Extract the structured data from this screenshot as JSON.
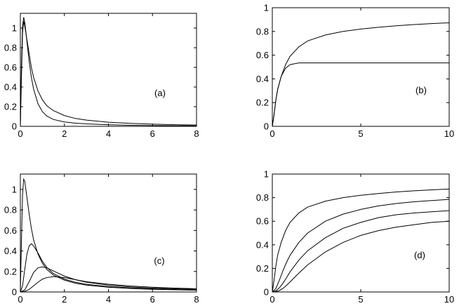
{
  "chart_data": [
    {
      "id": "a",
      "type": "line",
      "panel_label": "(a)",
      "xlim": [
        0,
        8
      ],
      "ylim": [
        0,
        1.15
      ],
      "xticks": [
        0,
        2,
        4,
        6,
        8
      ],
      "xtick_labels": [
        "0",
        "2",
        "4",
        "6",
        "8"
      ],
      "yticks": [
        0,
        0.2,
        0.4,
        0.6,
        0.8,
        1
      ],
      "ytick_labels": [
        "0",
        "0.2",
        "0.4",
        "0.6",
        "0.8",
        "1"
      ],
      "series": [
        {
          "x": [
            0,
            0.05,
            0.1,
            0.15,
            0.2,
            0.25,
            0.3,
            0.4,
            0.5,
            0.6,
            0.8,
            1.0,
            1.2,
            1.5,
            2.0,
            2.5,
            3,
            4,
            5,
            6,
            7,
            8
          ],
          "y": [
            0,
            0.62,
            1.02,
            1.11,
            1.06,
            0.96,
            0.86,
            0.66,
            0.5,
            0.38,
            0.23,
            0.15,
            0.105,
            0.07,
            0.045,
            0.032,
            0.025,
            0.016,
            0.011,
            0.008,
            0.006,
            0.005
          ]
        },
        {
          "x": [
            0,
            0.05,
            0.1,
            0.15,
            0.2,
            0.25,
            0.3,
            0.4,
            0.5,
            0.6,
            0.8,
            1.0,
            1.2,
            1.5,
            2.0,
            2.5,
            3,
            4,
            5,
            6,
            7,
            8
          ],
          "y": [
            0,
            0.5,
            0.95,
            1.07,
            1.02,
            0.95,
            0.88,
            0.74,
            0.6,
            0.5,
            0.36,
            0.27,
            0.21,
            0.16,
            0.11,
            0.08,
            0.063,
            0.042,
            0.03,
            0.022,
            0.017,
            0.013
          ]
        }
      ]
    },
    {
      "id": "b",
      "type": "line",
      "panel_label": "(b)",
      "xlim": [
        0,
        10
      ],
      "ylim": [
        0,
        1
      ],
      "xticks": [
        0,
        5,
        10
      ],
      "xtick_labels": [
        "0",
        "5",
        "10"
      ],
      "yticks": [
        0,
        0.2,
        0.4,
        0.6,
        0.8,
        1
      ],
      "ytick_labels": [
        "0",
        "0.2",
        "0.4",
        "0.6",
        "0.8",
        "1"
      ],
      "series": [
        {
          "x": [
            0,
            0.1,
            0.2,
            0.3,
            0.5,
            0.75,
            1,
            1.5,
            2,
            3,
            4,
            5,
            6,
            7,
            8,
            9,
            10
          ],
          "y": [
            0,
            0.1,
            0.22,
            0.31,
            0.42,
            0.49,
            0.52,
            0.535,
            0.535,
            0.535,
            0.535,
            0.535,
            0.535,
            0.535,
            0.535,
            0.535,
            0.535
          ]
        },
        {
          "x": [
            0,
            0.1,
            0.2,
            0.3,
            0.5,
            0.75,
            1,
            1.5,
            2,
            3,
            4,
            5,
            6,
            7,
            8,
            9,
            10
          ],
          "y": [
            0,
            0.1,
            0.22,
            0.31,
            0.42,
            0.52,
            0.59,
            0.67,
            0.72,
            0.77,
            0.8,
            0.82,
            0.835,
            0.848,
            0.858,
            0.866,
            0.873
          ]
        }
      ]
    },
    {
      "id": "c",
      "type": "line",
      "panel_label": "(c)",
      "xlim": [
        0,
        8
      ],
      "ylim": [
        0,
        1.15
      ],
      "xticks": [
        0,
        2,
        4,
        6,
        8
      ],
      "xtick_labels": [
        "0",
        "2",
        "4",
        "6",
        "8"
      ],
      "yticks": [
        0,
        0.2,
        0.4,
        0.6,
        0.8,
        1
      ],
      "ytick_labels": [
        "0",
        "0.2",
        "0.4",
        "0.6",
        "0.8",
        "1"
      ],
      "series": [
        {
          "x": [
            0,
            0.05,
            0.1,
            0.15,
            0.2,
            0.25,
            0.3,
            0.4,
            0.5,
            0.6,
            0.8,
            1.0,
            1.2,
            1.5,
            2.0,
            2.5,
            3,
            4,
            5,
            6,
            7,
            8
          ],
          "y": [
            0,
            0.5,
            0.95,
            1.1,
            1.08,
            1.0,
            0.92,
            0.76,
            0.62,
            0.51,
            0.37,
            0.28,
            0.22,
            0.165,
            0.115,
            0.085,
            0.067,
            0.046,
            0.034,
            0.026,
            0.021,
            0.017
          ]
        },
        {
          "x": [
            0,
            0.1,
            0.2,
            0.3,
            0.4,
            0.5,
            0.6,
            0.8,
            1.0,
            1.2,
            1.5,
            2.0,
            2.5,
            3,
            4,
            5,
            6,
            7,
            8
          ],
          "y": [
            0,
            0.06,
            0.22,
            0.37,
            0.45,
            0.47,
            0.45,
            0.38,
            0.3,
            0.24,
            0.18,
            0.125,
            0.095,
            0.075,
            0.052,
            0.039,
            0.03,
            0.024,
            0.02
          ]
        },
        {
          "x": [
            0,
            0.2,
            0.4,
            0.6,
            0.8,
            1.0,
            1.2,
            1.5,
            2.0,
            2.5,
            3,
            4,
            5,
            6,
            7,
            8
          ],
          "y": [
            0,
            0.02,
            0.1,
            0.19,
            0.235,
            0.245,
            0.235,
            0.205,
            0.155,
            0.12,
            0.095,
            0.066,
            0.049,
            0.038,
            0.031,
            0.026
          ]
        },
        {
          "x": [
            0,
            0.2,
            0.4,
            0.6,
            0.8,
            1.0,
            1.2,
            1.5,
            2.0,
            2.5,
            3,
            4,
            5,
            6,
            7,
            8
          ],
          "y": [
            0,
            0.005,
            0.025,
            0.06,
            0.095,
            0.125,
            0.14,
            0.15,
            0.14,
            0.12,
            0.1,
            0.075,
            0.058,
            0.046,
            0.038,
            0.032
          ]
        }
      ]
    },
    {
      "id": "d",
      "type": "line",
      "panel_label": "(d)",
      "xlim": [
        0,
        10
      ],
      "ylim": [
        0,
        1
      ],
      "xticks": [
        0,
        5,
        10
      ],
      "xtick_labels": [
        "0",
        "5",
        "10"
      ],
      "yticks": [
        0,
        0.2,
        0.4,
        0.6,
        0.8,
        1
      ],
      "ytick_labels": [
        "0",
        "0.2",
        "0.4",
        "0.6",
        "0.8",
        "1"
      ],
      "series": [
        {
          "x": [
            0,
            0.1,
            0.2,
            0.3,
            0.5,
            0.75,
            1,
            1.5,
            2,
            3,
            4,
            5,
            6,
            7,
            8,
            9,
            10
          ],
          "y": [
            0,
            0.1,
            0.22,
            0.31,
            0.42,
            0.52,
            0.59,
            0.67,
            0.72,
            0.77,
            0.8,
            0.82,
            0.835,
            0.848,
            0.858,
            0.866,
            0.873
          ]
        },
        {
          "x": [
            0,
            0.2,
            0.4,
            0.6,
            0.8,
            1,
            1.5,
            2,
            3,
            4,
            5,
            6,
            7,
            8,
            9,
            10
          ],
          "y": [
            0,
            0.03,
            0.1,
            0.18,
            0.25,
            0.31,
            0.42,
            0.5,
            0.6,
            0.66,
            0.7,
            0.73,
            0.75,
            0.765,
            0.775,
            0.785
          ]
        },
        {
          "x": [
            0,
            0.2,
            0.4,
            0.6,
            0.8,
            1,
            1.5,
            2,
            3,
            4,
            5,
            6,
            7,
            8,
            9,
            10
          ],
          "y": [
            0,
            0.01,
            0.035,
            0.075,
            0.12,
            0.17,
            0.27,
            0.35,
            0.46,
            0.54,
            0.59,
            0.63,
            0.655,
            0.67,
            0.68,
            0.69
          ]
        },
        {
          "x": [
            0,
            0.2,
            0.4,
            0.6,
            0.8,
            1,
            1.5,
            2,
            3,
            4,
            5,
            6,
            7,
            8,
            9,
            10
          ],
          "y": [
            0,
            0.003,
            0.012,
            0.03,
            0.055,
            0.085,
            0.16,
            0.23,
            0.34,
            0.42,
            0.48,
            0.52,
            0.55,
            0.57,
            0.59,
            0.6
          ]
        }
      ]
    }
  ]
}
